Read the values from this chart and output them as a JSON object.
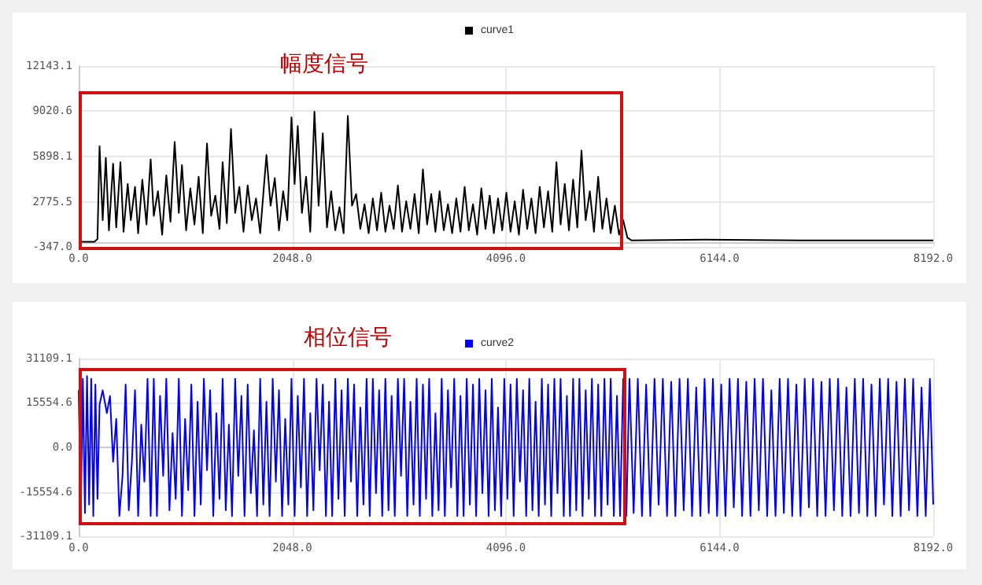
{
  "chart_data": [
    {
      "type": "line",
      "annotations": [
        "幅度信号"
      ],
      "legend": "top",
      "grid": true,
      "marker": "none",
      "line_style": "solid",
      "xlim": [
        0,
        8192
      ],
      "xticks": [
        {
          "value": 0,
          "label": "0.0"
        },
        {
          "value": 2048,
          "label": "2048.0"
        },
        {
          "value": 4096,
          "label": "4096.0"
        },
        {
          "value": 6144,
          "label": "6144.0"
        },
        {
          "value": 8192,
          "label": "8192.0"
        }
      ],
      "ylim": [
        -347,
        12143.1
      ],
      "yticks": [
        {
          "value": -347,
          "label": "-347.0"
        },
        {
          "value": 2775.5,
          "label": "2775.5"
        },
        {
          "value": 5898.1,
          "label": "5898.1"
        },
        {
          "value": 9020.6,
          "label": "9020.6"
        },
        {
          "value": 12143.1,
          "label": "12143.1"
        }
      ],
      "x": [
        0,
        150,
        180,
        200,
        230,
        260,
        290,
        330,
        360,
        400,
        430,
        470,
        500,
        540,
        570,
        610,
        650,
        690,
        720,
        760,
        800,
        840,
        880,
        920,
        960,
        990,
        1030,
        1070,
        1110,
        1150,
        1190,
        1230,
        1270,
        1310,
        1350,
        1380,
        1420,
        1460,
        1500,
        1540,
        1580,
        1620,
        1660,
        1700,
        1740,
        1800,
        1840,
        1880,
        1920,
        1960,
        2000,
        2040,
        2070,
        2100,
        2140,
        2180,
        2220,
        2260,
        2300,
        2340,
        2380,
        2420,
        2460,
        2500,
        2540,
        2580,
        2620,
        2660,
        2700,
        2740,
        2780,
        2820,
        2860,
        2900,
        2940,
        2980,
        3020,
        3060,
        3100,
        3140,
        3180,
        3220,
        3260,
        3300,
        3340,
        3380,
        3420,
        3460,
        3500,
        3540,
        3580,
        3620,
        3660,
        3700,
        3740,
        3780,
        3820,
        3860,
        3900,
        3940,
        3980,
        4020,
        4060,
        4100,
        4140,
        4180,
        4220,
        4260,
        4300,
        4340,
        4380,
        4420,
        4460,
        4500,
        4540,
        4580,
        4620,
        4660,
        4700,
        4740,
        4780,
        4820,
        4860,
        4900,
        4940,
        4980,
        5020,
        5060,
        5100,
        5140,
        5180,
        5220,
        5260,
        5300,
        6000,
        7000,
        8192
      ],
      "series": [
        {
          "name": "curve1",
          "color": "#000000",
          "values": [
            0,
            0,
            200,
            6600,
            1500,
            5800,
            800,
            5400,
            1000,
            5500,
            700,
            4000,
            1500,
            3800,
            600,
            4300,
            1200,
            5700,
            1800,
            3500,
            500,
            4600,
            1400,
            6900,
            2000,
            5300,
            800,
            3700,
            1200,
            4500,
            600,
            6800,
            1800,
            3200,
            900,
            5500,
            1300,
            7800,
            2000,
            3800,
            700,
            3900,
            1500,
            3000,
            600,
            6000,
            2500,
            4400,
            800,
            3500,
            1500,
            8600,
            4000,
            8000,
            2000,
            4500,
            700,
            9000,
            2500,
            7500,
            1000,
            3500,
            800,
            2400,
            600,
            8700,
            2500,
            3300,
            900,
            2600,
            600,
            3000,
            800,
            3400,
            700,
            2500,
            900,
            3900,
            700,
            2800,
            900,
            3300,
            600,
            5000,
            1200,
            3300,
            700,
            3500,
            800,
            2600,
            600,
            3000,
            700,
            3800,
            800,
            2600,
            500,
            3700,
            900,
            3200,
            600,
            3000,
            800,
            3400,
            700,
            2800,
            500,
            3600,
            900,
            3000,
            600,
            3800,
            1000,
            3500,
            700,
            5500,
            1200,
            4000,
            800,
            4300,
            1000,
            6300,
            1500,
            3500,
            700,
            4500,
            900,
            3000,
            600,
            2500,
            500,
            1500,
            300,
            100,
            150,
            100,
            100
          ]
        }
      ]
    },
    {
      "type": "line",
      "annotations": [
        "相位信号"
      ],
      "legend": "top",
      "grid": true,
      "marker": "none",
      "line_style": "solid",
      "xlim": [
        0,
        8192
      ],
      "xticks": [
        {
          "value": 0,
          "label": "0.0"
        },
        {
          "value": 2048,
          "label": "2048.0"
        },
        {
          "value": 4096,
          "label": "4096.0"
        },
        {
          "value": 6144,
          "label": "6144.0"
        },
        {
          "value": 8192,
          "label": "8192.0"
        }
      ],
      "ylim": [
        -31109.1,
        31109.1
      ],
      "yticks": [
        {
          "value": -31109.1,
          "label": "-31109.1"
        },
        {
          "value": -15554.6,
          "label": "-15554.6"
        },
        {
          "value": 0,
          "label": "0.0"
        },
        {
          "value": 15554.6,
          "label": "15554.6"
        },
        {
          "value": 31109.1,
          "label": "31109.1"
        }
      ],
      "x": [
        0,
        20,
        40,
        60,
        80,
        100,
        120,
        140,
        160,
        180,
        200,
        230,
        270,
        300,
        330,
        360,
        390,
        420,
        450,
        480,
        510,
        540,
        570,
        600,
        630,
        660,
        690,
        720,
        750,
        780,
        810,
        840,
        870,
        900,
        930,
        960,
        990,
        1020,
        1050,
        1080,
        1110,
        1140,
        1170,
        1200,
        1230,
        1260,
        1290,
        1320,
        1350,
        1380,
        1410,
        1440,
        1470,
        1500,
        1530,
        1560,
        1590,
        1620,
        1650,
        1680,
        1710,
        1740,
        1770,
        1800,
        1830,
        1860,
        1890,
        1920,
        1950,
        1980,
        2010,
        2040,
        2070,
        2100,
        2130,
        2160,
        2190,
        2220,
        2250,
        2280,
        2310,
        2340,
        2370,
        2400,
        2430,
        2460,
        2490,
        2520,
        2550,
        2580,
        2610,
        2640,
        2670,
        2700,
        2730,
        2760,
        2790,
        2820,
        2850,
        2880,
        2910,
        2940,
        2970,
        3000,
        3030,
        3060,
        3090,
        3120,
        3150,
        3180,
        3210,
        3240,
        3270,
        3300,
        3330,
        3360,
        3390,
        3420,
        3450,
        3480,
        3510,
        3540,
        3570,
        3600,
        3630,
        3660,
        3690,
        3720,
        3750,
        3780,
        3810,
        3840,
        3870,
        3900,
        3930,
        3960,
        3990,
        4020,
        4050,
        4080,
        4110,
        4140,
        4170,
        4200,
        4230,
        4260,
        4290,
        4320,
        4350,
        4380,
        4410,
        4440,
        4470,
        4500,
        4530,
        4560,
        4590,
        4620,
        4650,
        4680,
        4710,
        4740,
        4770,
        4800,
        4830,
        4860,
        4890,
        4920,
        4950,
        4980,
        5010,
        5040,
        5070,
        5100,
        5130,
        5160,
        5190,
        5220,
        5250,
        5280,
        5320,
        5360,
        5400,
        5440,
        5480,
        5520,
        5560,
        5600,
        5640,
        5680,
        5720,
        5760,
        5800,
        5840,
        5880,
        5920,
        5960,
        6000,
        6040,
        6080,
        6120,
        6160,
        6200,
        6240,
        6280,
        6320,
        6360,
        6400,
        6440,
        6480,
        6520,
        6560,
        6600,
        6640,
        6680,
        6720,
        6760,
        6800,
        6840,
        6880,
        6920,
        6960,
        7000,
        7040,
        7080,
        7120,
        7160,
        7200,
        7240,
        7280,
        7320,
        7360,
        7400,
        7440,
        7480,
        7520,
        7560,
        7600,
        7640,
        7680,
        7720,
        7760,
        7800,
        7840,
        7880,
        7920,
        7960,
        8000,
        8040,
        8080,
        8120,
        8160,
        8192
      ],
      "series": [
        {
          "name": "curve2",
          "color": "#0000ff",
          "values": [
            20000,
            -24000,
            24000,
            -23000,
            25000,
            -20000,
            24000,
            -24000,
            22000,
            -18000,
            15000,
            20000,
            12000,
            18000,
            -5000,
            10000,
            -24000,
            -10000,
            22000,
            -22000,
            -5000,
            20000,
            -24000,
            8000,
            -12000,
            24000,
            -24000,
            24000,
            -24000,
            18000,
            -10000,
            24000,
            -22000,
            5000,
            -18000,
            24000,
            -24000,
            10000,
            -15000,
            22000,
            -24000,
            16000,
            -20000,
            24000,
            -8000,
            20000,
            -24000,
            12000,
            -18000,
            24000,
            -22000,
            8000,
            -24000,
            24000,
            -10000,
            18000,
            -24000,
            22000,
            -16000,
            6000,
            -24000,
            24000,
            -20000,
            16000,
            -24000,
            24000,
            -12000,
            20000,
            -24000,
            10000,
            -20000,
            24000,
            -24000,
            18000,
            -14000,
            24000,
            -24000,
            12000,
            -22000,
            24000,
            -8000,
            22000,
            -24000,
            16000,
            -24000,
            24000,
            -18000,
            20000,
            -24000,
            24000,
            -12000,
            22000,
            -24000,
            14000,
            -20000,
            24000,
            -24000,
            24000,
            -16000,
            20000,
            -24000,
            24000,
            -22000,
            18000,
            -24000,
            24000,
            -10000,
            24000,
            -24000,
            16000,
            -20000,
            24000,
            -24000,
            22000,
            -18000,
            24000,
            -24000,
            12000,
            -22000,
            24000,
            -24000,
            20000,
            -14000,
            24000,
            -24000,
            18000,
            -24000,
            24000,
            -20000,
            22000,
            -24000,
            24000,
            -16000,
            20000,
            -24000,
            24000,
            -22000,
            14000,
            -24000,
            24000,
            -18000,
            22000,
            -24000,
            24000,
            -12000,
            20000,
            -24000,
            24000,
            -22000,
            16000,
            -24000,
            24000,
            -20000,
            22000,
            -24000,
            24000,
            -16000,
            24000,
            -24000,
            18000,
            -24000,
            24000,
            -22000,
            24000,
            -24000,
            20000,
            -18000,
            24000,
            -24000,
            22000,
            -24000,
            24000,
            -20000,
            24000,
            -24000,
            18000,
            -24000,
            24000,
            -24000,
            24000,
            -23000,
            24000,
            -24000,
            22000,
            -24000,
            24000,
            -20000,
            24000,
            -24000,
            23000,
            -24000,
            24000,
            -22000,
            24000,
            -24000,
            21000,
            -24000,
            24000,
            -23000,
            24000,
            -24000,
            22000,
            -24000,
            24000,
            -21000,
            24000,
            -24000,
            23000,
            -24000,
            24000,
            -22000,
            24000,
            -24000,
            20000,
            -24000,
            24000,
            -23000,
            24000,
            -24000,
            22000,
            -24000,
            24000,
            -21000,
            24000,
            -24000,
            23000,
            -24000,
            24000,
            -22000,
            24000,
            -24000,
            21000,
            -24000,
            24000,
            -23000,
            24000,
            -24000,
            22000,
            -24000,
            24000,
            -20000,
            24000,
            -24000,
            23000,
            -24000,
            24000,
            -22000,
            24000,
            -24000,
            21000,
            -24000,
            24000,
            -20000
          ]
        }
      ]
    }
  ]
}
